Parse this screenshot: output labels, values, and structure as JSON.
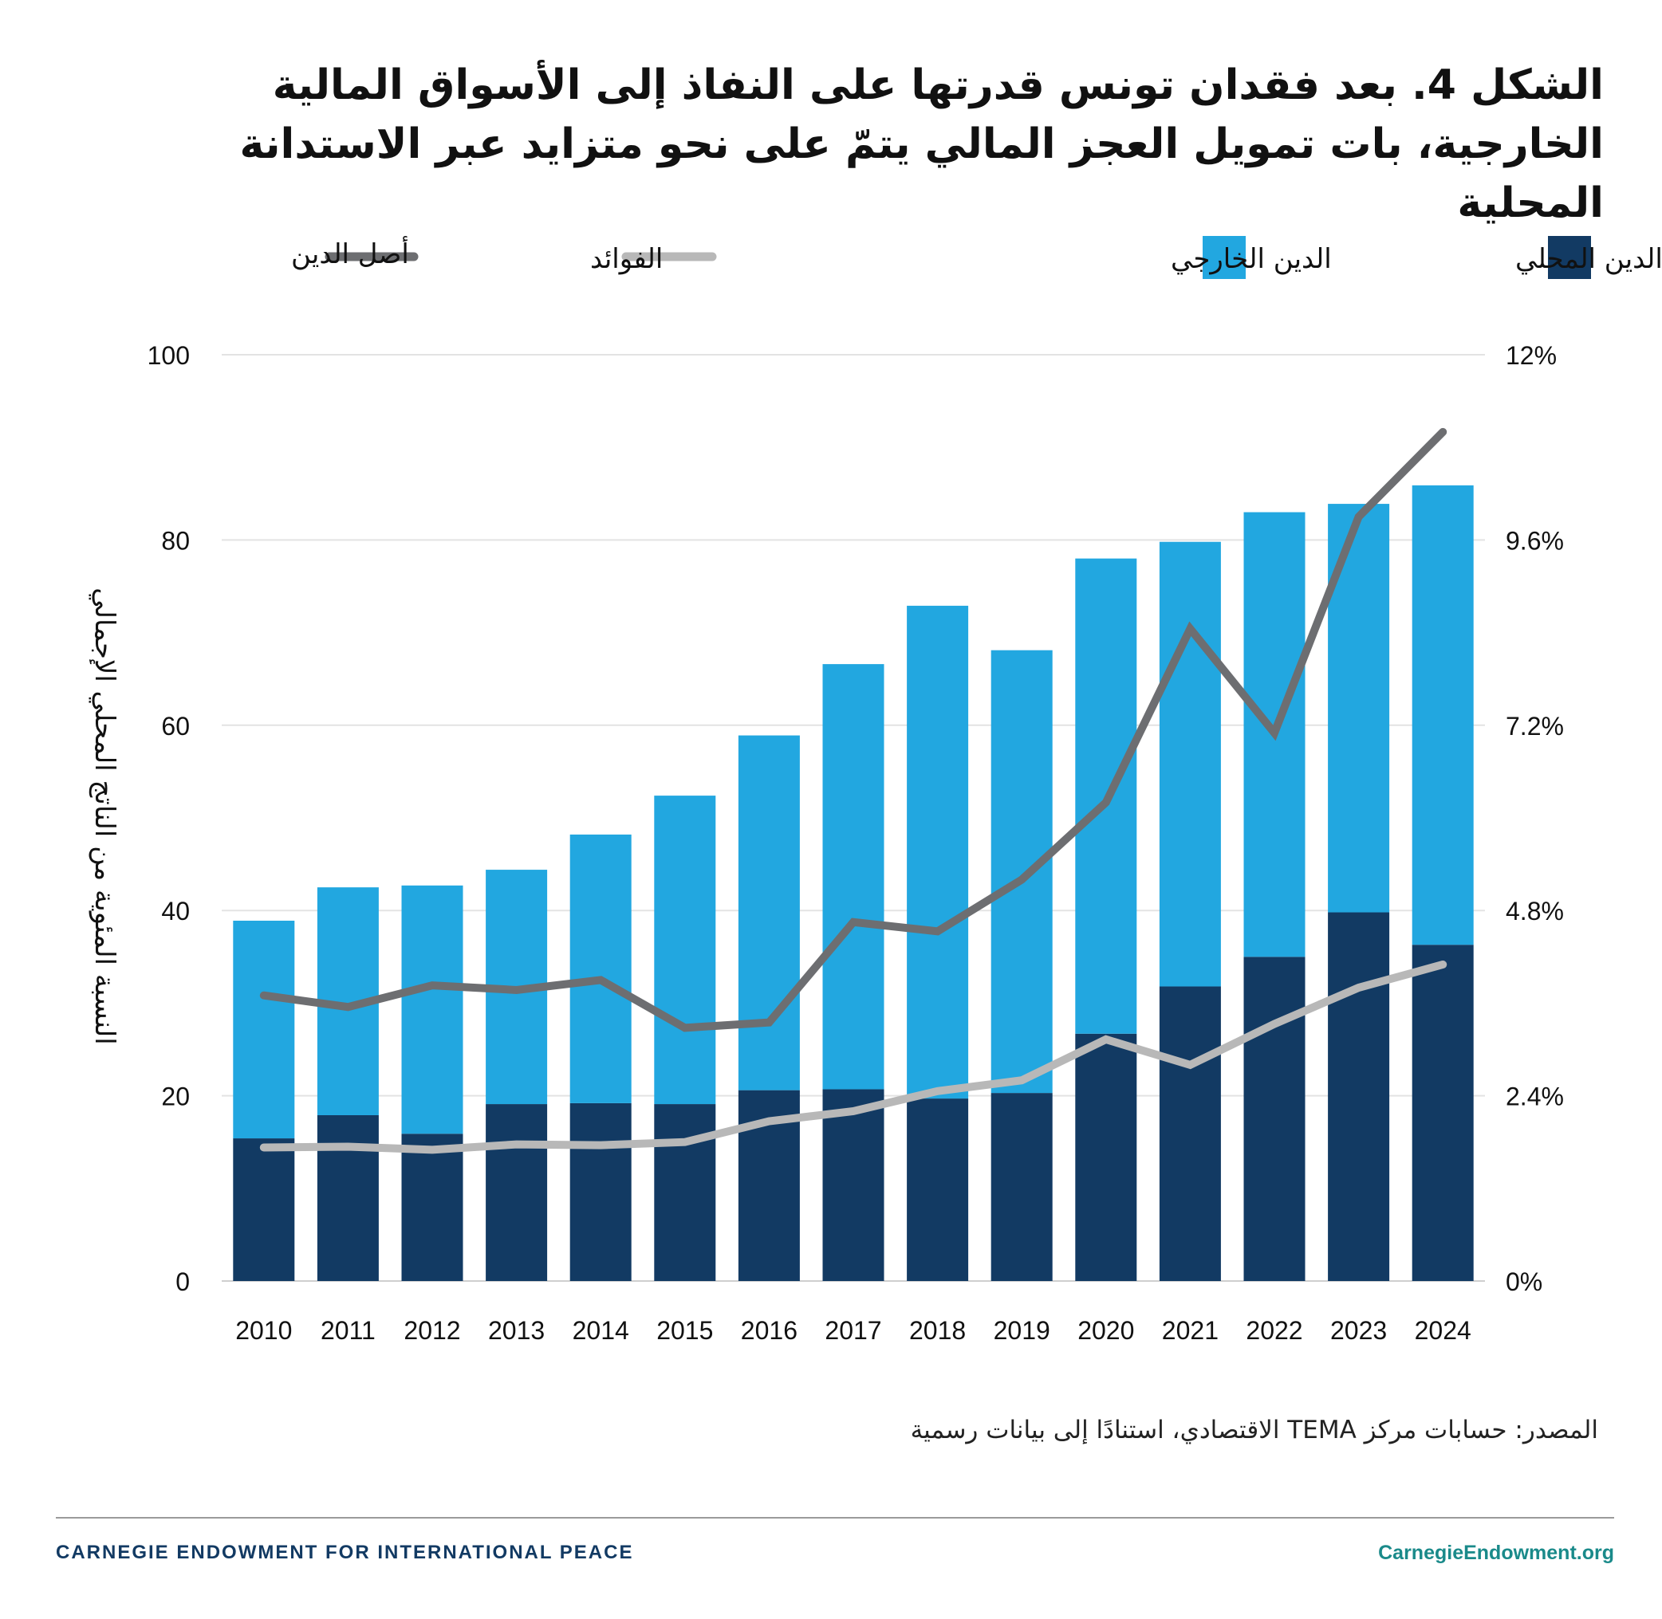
{
  "title": "الشكل 4. بعد فقدان تونس قدرتها على النفاذ إلى الأسواق المالية الخارجية، بات تمويل العجز المالي يتمّ على نحو متزايد عبر الاستدانة المحلية",
  "legend": {
    "domestic": "الدين المحلي",
    "external": "الدين الخارجي",
    "interest": "الفوائد",
    "principal": "أصل الدين"
  },
  "colors": {
    "domestic": "#123a63",
    "external": "#22a7e0",
    "interest": "#b8b8b8",
    "principal": "#6d6e71",
    "grid": "#e3e3e3"
  },
  "chart_data": {
    "type": "bar",
    "stacked": true,
    "categories": [
      "2010",
      "2011",
      "2012",
      "2013",
      "2014",
      "2015",
      "2016",
      "2017",
      "2018",
      "2019",
      "2020",
      "2021",
      "2022",
      "2023",
      "2024"
    ],
    "series": [
      {
        "name": "الدين المحلي",
        "axis": "left",
        "values": [
          15.4,
          17.9,
          15.9,
          19.1,
          19.2,
          19.1,
          20.6,
          20.7,
          19.7,
          20.3,
          26.7,
          31.8,
          35.0,
          39.8,
          36.3
        ]
      },
      {
        "name": "الدين الخارجي",
        "axis": "left",
        "values": [
          23.5,
          24.6,
          26.8,
          25.3,
          29.0,
          33.3,
          38.3,
          45.9,
          53.2,
          47.8,
          51.3,
          48.0,
          48.0,
          44.1,
          49.6
        ]
      },
      {
        "name": "الفوائد",
        "axis": "right",
        "type": "line",
        "values": [
          1.73,
          1.74,
          1.7,
          1.77,
          1.76,
          1.8,
          2.07,
          2.2,
          2.46,
          2.6,
          3.13,
          2.8,
          3.33,
          3.8,
          4.1
        ]
      },
      {
        "name": "أصل الدين",
        "axis": "right",
        "type": "line",
        "values": [
          3.7,
          3.55,
          3.83,
          3.77,
          3.9,
          3.28,
          3.35,
          4.65,
          4.53,
          5.2,
          6.2,
          8.45,
          7.1,
          9.9,
          11.0
        ]
      }
    ],
    "ylabel": "النسبة المئوية من الناتج المحلي الإجمالي",
    "ylim": [
      0,
      100
    ],
    "yticks": [
      "0",
      "20",
      "40",
      "60",
      "80",
      "100"
    ],
    "y2lim": [
      0,
      12
    ],
    "y2ticks": [
      "0%",
      "2.4%",
      "4.8%",
      "7.2%",
      "9.6%",
      "12%"
    ],
    "grid": true,
    "legend_position": "top"
  },
  "source": "المصدر: حسابات مركز TEMA الاقتصادي، استنادًا إلى بيانات رسمية",
  "footer": {
    "organization": "CARNEGIE ENDOWMENT FOR INTERNATIONAL PEACE",
    "website": "CarnegieEndowment.org"
  }
}
